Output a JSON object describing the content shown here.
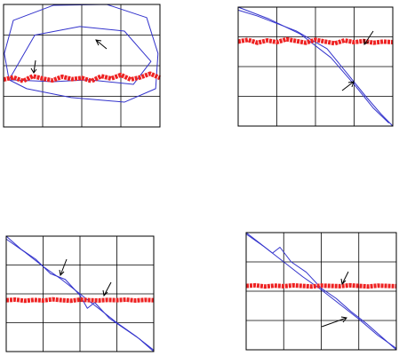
{
  "chart_data": [
    {
      "type": "line",
      "xlim": [
        0,
        4
      ],
      "ylim": [
        0,
        4
      ],
      "xticks": [
        0,
        1,
        2,
        3,
        4
      ],
      "yticks": [
        0,
        1,
        2,
        3,
        4
      ],
      "grid": true,
      "series": [
        {
          "color": "#3333cc",
          "x": [
            0.14,
            0.02,
            0.25,
            1.27,
            2.64,
            3.66,
            3.95,
            3.89,
            3.09,
            1.73,
            0.59,
            0.14
          ],
          "values": [
            1.54,
            2.4,
            3.48,
            3.97,
            4,
            3.57,
            2.4,
            1.25,
            0.81,
            0.96,
            1.25,
            1.54
          ]
        },
        {
          "color": "#3333cc",
          "x": [
            0.14,
            0.8,
            1.95,
            3.09,
            3.77,
            3.32,
            2.18,
            1.27,
            0.14
          ],
          "values": [
            1.54,
            3.0,
            3.28,
            3.13,
            2.14,
            1.39,
            1.54,
            1.48,
            1.54
          ]
        },
        {
          "color": "#ee2222",
          "x": [
            0,
            0.25,
            0.5,
            0.75,
            1,
            1.25,
            1.5,
            1.75,
            2,
            2.25,
            2.5,
            2.75,
            3,
            3.25,
            3.5,
            3.75,
            4
          ],
          "values": [
            1.55,
            1.62,
            1.5,
            1.66,
            1.58,
            1.52,
            1.64,
            1.56,
            1.6,
            1.5,
            1.66,
            1.58,
            1.7,
            1.55,
            1.62,
            1.74,
            1.6
          ]
        }
      ]
    },
    {
      "type": "line",
      "xlim": [
        0,
        4
      ],
      "ylim": [
        0,
        4
      ],
      "xticks": [
        0,
        1,
        2,
        3,
        4
      ],
      "yticks": [
        0,
        1,
        2,
        3,
        4
      ],
      "grid": true,
      "series": [
        {
          "color": "#3333cc",
          "x": [
            0,
            0.5,
            1.5,
            2.3,
            2.8,
            3.3,
            3.7,
            4
          ],
          "values": [
            3.9,
            3.7,
            3.2,
            2.6,
            1.8,
            1.0,
            0.4,
            0
          ]
        },
        {
          "color": "#3333cc",
          "x": [
            0,
            0.8,
            1.6,
            2.4,
            3,
            3.5,
            3.9
          ],
          "values": [
            4,
            3.6,
            3.1,
            2.3,
            1.4,
            0.6,
            0.1
          ]
        },
        {
          "color": "#ee2222",
          "x": [
            0,
            0.25,
            0.5,
            0.75,
            1,
            1.25,
            1.5,
            1.75,
            2,
            2.25,
            2.5,
            2.75,
            3,
            3.25,
            3.5,
            3.75,
            4
          ],
          "values": [
            2.84,
            2.9,
            2.8,
            2.88,
            2.82,
            2.92,
            2.86,
            2.8,
            2.9,
            2.84,
            2.78,
            2.88,
            2.82,
            2.86,
            2.8,
            2.84,
            2.82
          ]
        }
      ]
    },
    {
      "type": "line",
      "xlim": [
        0,
        4
      ],
      "ylim": [
        0,
        4
      ],
      "xticks": [
        0,
        1,
        2,
        3,
        4
      ],
      "yticks": [
        0,
        1,
        2,
        3,
        4
      ],
      "grid": true,
      "series": [
        {
          "color": "#3333cc",
          "x": [
            0,
            0.4,
            0.8,
            1.2,
            1.6,
            2,
            2.2,
            2.4,
            2.8,
            3.2,
            3.6,
            4
          ],
          "values": [
            4,
            3.55,
            3.2,
            2.7,
            2.5,
            1.95,
            1.5,
            1.7,
            1.15,
            0.8,
            0.45,
            0
          ]
        },
        {
          "color": "#3333cc",
          "x": [
            0,
            0.5,
            1,
            1.5,
            2,
            2.5,
            3,
            3.5,
            4
          ],
          "values": [
            3.9,
            3.45,
            2.95,
            2.5,
            2.0,
            1.5,
            1.0,
            0.55,
            0.05
          ]
        },
        {
          "color": "#ee2222",
          "x": [
            0,
            0.25,
            0.5,
            0.75,
            1,
            1.25,
            1.5,
            1.75,
            2,
            2.25,
            2.5,
            2.75,
            3,
            3.25,
            3.5,
            3.75,
            4
          ],
          "values": [
            1.78,
            1.8,
            1.76,
            1.79,
            1.77,
            1.81,
            1.78,
            1.76,
            1.8,
            1.78,
            1.77,
            1.79,
            1.78,
            1.8,
            1.77,
            1.79,
            1.78
          ]
        }
      ]
    },
    {
      "type": "line",
      "xlim": [
        0,
        4
      ],
      "ylim": [
        0,
        4
      ],
      "xticks": [
        0,
        1,
        2,
        3,
        4
      ],
      "yticks": [
        0,
        1,
        2,
        3,
        4
      ],
      "grid": true,
      "series": [
        {
          "color": "#3333cc",
          "x": [
            0,
            0.4,
            0.7,
            0.9,
            1.2,
            1.6,
            2,
            2.4,
            2.8,
            3.2,
            3.6,
            4
          ],
          "values": [
            4,
            3.6,
            3.3,
            3.5,
            3.0,
            2.65,
            2.1,
            1.75,
            1.3,
            0.9,
            0.45,
            0
          ]
        },
        {
          "color": "#3333cc",
          "x": [
            0,
            0.5,
            1,
            1.5,
            2,
            2.5,
            3,
            3.5,
            4
          ],
          "values": [
            3.95,
            3.5,
            3.0,
            2.5,
            2.05,
            1.55,
            1.05,
            0.5,
            0.05
          ]
        },
        {
          "color": "#ee2222",
          "x": [
            0,
            0.25,
            0.5,
            0.75,
            1,
            1.25,
            1.5,
            1.75,
            2,
            2.25,
            2.5,
            2.75,
            3,
            3.25,
            3.5,
            3.75,
            4
          ],
          "values": [
            2.18,
            2.2,
            2.16,
            2.19,
            2.17,
            2.2,
            2.18,
            2.16,
            2.19,
            2.18,
            2.17,
            2.2,
            2.18,
            2.16,
            2.19,
            2.18,
            2.17
          ]
        }
      ]
    }
  ]
}
